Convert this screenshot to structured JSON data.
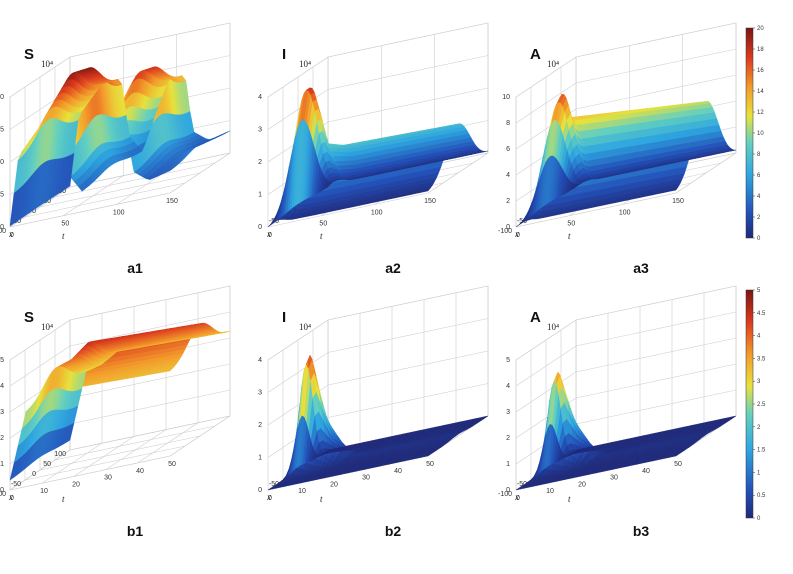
{
  "chart_data": [
    {
      "id": "a1",
      "type": "surface3d",
      "panel_label": "a1",
      "variable": "S",
      "exponent": "10⁴",
      "xlabel": "x",
      "tlabel": "t",
      "x_ticks": [
        "-100",
        "-50",
        "0",
        "50",
        "100"
      ],
      "t_ticks": [
        "0",
        "50",
        "100",
        "150"
      ],
      "z_ticks": [
        "0",
        "5",
        "10",
        "15",
        "20"
      ],
      "zlim": [
        0,
        20
      ],
      "tlim": [
        0,
        150
      ],
      "xlim": [
        -100,
        100
      ],
      "colormap": "jet",
      "profile_peaks": [
        {
          "t": 0,
          "z": 0.2
        },
        {
          "t": 8,
          "z": 14
        },
        {
          "t": 30,
          "z": 19.5
        },
        {
          "t": 48,
          "z": 19.8
        },
        {
          "t": 55,
          "z": 8
        },
        {
          "t": 68,
          "z": 4
        },
        {
          "t": 80,
          "z": 11
        },
        {
          "t": 92,
          "z": 17.5
        },
        {
          "t": 108,
          "z": 17.8
        },
        {
          "t": 115,
          "z": 6
        },
        {
          "t": 130,
          "z": 3.5
        },
        {
          "t": 150,
          "z": 4.5
        }
      ]
    },
    {
      "id": "a2",
      "type": "surface3d",
      "panel_label": "a2",
      "variable": "I",
      "exponent": "10⁴",
      "xlabel": "x",
      "tlabel": "t",
      "x_ticks": [
        "-50",
        "0",
        "50"
      ],
      "t_ticks": [
        "0",
        "50",
        "100",
        "150"
      ],
      "z_ticks": [
        "0",
        "1",
        "2",
        "3",
        "4"
      ],
      "zlim": [
        0,
        4
      ],
      "tlim": [
        0,
        150
      ],
      "xlim": [
        -100,
        100
      ],
      "colormap": "jet",
      "profile_peaks": [
        {
          "t": 0,
          "z": 0.1
        },
        {
          "t": 5,
          "z": 3.5
        },
        {
          "t": 12,
          "z": 3.6
        },
        {
          "t": 22,
          "z": 1.8
        },
        {
          "t": 40,
          "z": 1.6
        },
        {
          "t": 150,
          "z": 1.5
        }
      ]
    },
    {
      "id": "a3",
      "type": "surface3d",
      "panel_label": "a3",
      "variable": "A",
      "exponent": "10⁴",
      "xlabel": "x",
      "tlabel": "t",
      "x_ticks": [
        "-100",
        "-50",
        "0",
        "50"
      ],
      "t_ticks": [
        "0",
        "50",
        "100",
        "150"
      ],
      "z_ticks": [
        "0",
        "2",
        "4",
        "6",
        "8",
        "10"
      ],
      "zlim": [
        0,
        10
      ],
      "tlim": [
        0,
        150
      ],
      "xlim": [
        -100,
        100
      ],
      "colormap": "jet",
      "profile_peaks": [
        {
          "t": 0,
          "z": 0.2
        },
        {
          "t": 6,
          "z": 6
        },
        {
          "t": 14,
          "z": 8.8
        },
        {
          "t": 20,
          "z": 6.5
        },
        {
          "t": 150,
          "z": 5.5
        }
      ]
    },
    {
      "id": "b1",
      "type": "surface3d",
      "panel_label": "b1",
      "variable": "S",
      "exponent": "10⁴",
      "xlabel": "x",
      "tlabel": "t",
      "x_ticks": [
        "-100",
        "-50",
        "0",
        "50",
        "100"
      ],
      "t_ticks": [
        "0",
        "10",
        "20",
        "30",
        "40",
        "50"
      ],
      "z_ticks": [
        "0",
        "1",
        "2",
        "3",
        "4",
        "5"
      ],
      "zlim": [
        0,
        5
      ],
      "tlim": [
        0,
        50
      ],
      "xlim": [
        -100,
        100
      ],
      "colormap": "jet",
      "profile_peaks": [
        {
          "t": 0,
          "z": 0.5
        },
        {
          "t": 5,
          "z": 3.8
        },
        {
          "t": 10,
          "z": 4.0
        },
        {
          "t": 15,
          "z": 4.5
        },
        {
          "t": 50,
          "z": 4.3
        }
      ]
    },
    {
      "id": "b2",
      "type": "surface3d",
      "panel_label": "b2",
      "variable": "I",
      "exponent": "10⁴",
      "xlabel": "x",
      "tlabel": "t",
      "x_ticks": [
        "-50",
        "0",
        "50"
      ],
      "t_ticks": [
        "0",
        "10",
        "20",
        "30",
        "40",
        "50"
      ],
      "z_ticks": [
        "0",
        "1",
        "2",
        "3",
        "4"
      ],
      "zlim": [
        0,
        4
      ],
      "tlim": [
        0,
        50
      ],
      "xlim": [
        -100,
        100
      ],
      "colormap": "jet",
      "profile_peaks": [
        {
          "t": 0,
          "z": 0.1
        },
        {
          "t": 3,
          "z": 3.8
        },
        {
          "t": 8,
          "z": 1.5
        },
        {
          "t": 15,
          "z": 0.1
        },
        {
          "t": 50,
          "z": 0.05
        }
      ]
    },
    {
      "id": "b3",
      "type": "surface3d",
      "panel_label": "b3",
      "variable": "A",
      "exponent": "10⁴",
      "xlabel": "x",
      "tlabel": "t",
      "x_ticks": [
        "-100",
        "-50",
        "0",
        "50"
      ],
      "t_ticks": [
        "0",
        "10",
        "20",
        "30",
        "40",
        "50"
      ],
      "z_ticks": [
        "0",
        "1",
        "2",
        "3",
        "4",
        "5"
      ],
      "zlim": [
        0,
        5
      ],
      "tlim": [
        0,
        50
      ],
      "xlim": [
        -100,
        100
      ],
      "colormap": "jet",
      "profile_peaks": [
        {
          "t": 0,
          "z": 0.1
        },
        {
          "t": 3,
          "z": 4.0
        },
        {
          "t": 8,
          "z": 1.8
        },
        {
          "t": 15,
          "z": 0.1
        },
        {
          "t": 50,
          "z": 0.05
        }
      ]
    }
  ],
  "colorbars": [
    {
      "id": "top",
      "ticks": [
        "0",
        "2",
        "4",
        "6",
        "8",
        "10",
        "12",
        "14",
        "16",
        "18",
        "20"
      ],
      "min": 0,
      "max": 20
    },
    {
      "id": "bottom",
      "ticks": [
        "0",
        "0.5",
        "1",
        "1.5",
        "2",
        "2.5",
        "3",
        "3.5",
        "4",
        "4.5",
        "5"
      ],
      "min": 0,
      "max": 5
    }
  ],
  "colors": {
    "jet_low": "#1e2f8a",
    "jet_mid": "#39b9e6",
    "jet_yellow": "#f2e33a",
    "jet_high": "#8b1a14",
    "grid": "#d6d6d6"
  }
}
